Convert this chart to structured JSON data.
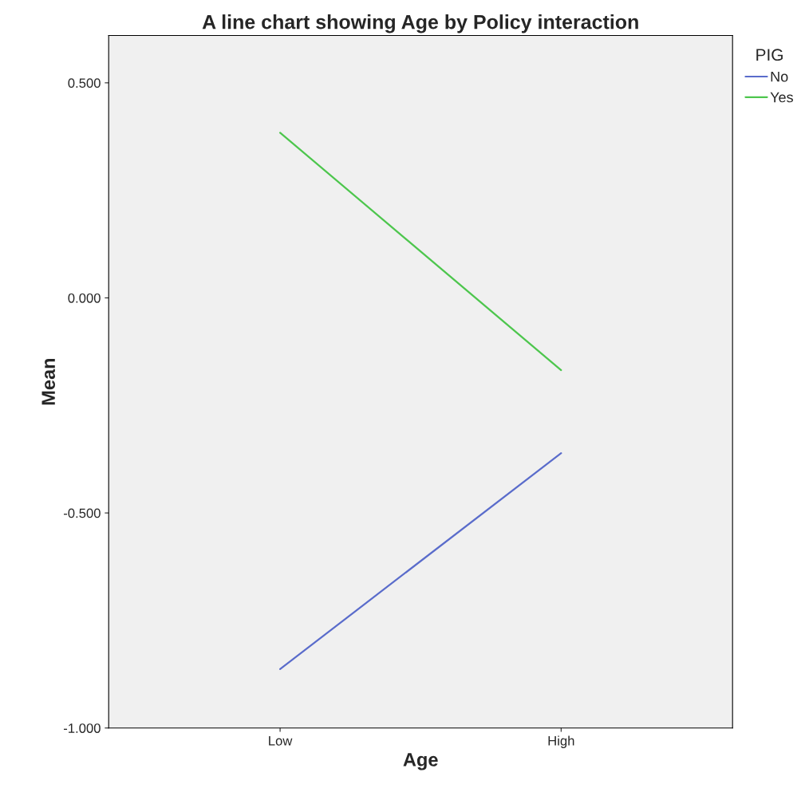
{
  "chart_data": {
    "type": "line",
    "title": "A line chart showing Age by Policy interaction",
    "xlabel": "Age",
    "ylabel": "Mean",
    "legend_title": "PIG",
    "categories": [
      "Low",
      "High"
    ],
    "series": [
      {
        "name": "No",
        "color": "#5a6ccb",
        "values": [
          -0.863,
          -0.361
        ]
      },
      {
        "name": "Yes",
        "color": "#4dc64d",
        "values": [
          0.384,
          -0.168
        ]
      }
    ],
    "ylim": [
      -1.0,
      0.61
    ],
    "yticks": [
      {
        "value": -1.0,
        "label": "-1.000"
      },
      {
        "value": -0.5,
        "label": "-0.500"
      },
      {
        "value": 0.0,
        "label": "0.000"
      },
      {
        "value": 0.5,
        "label": "0.500"
      }
    ],
    "grid": false,
    "legend": "top right",
    "marker": "none",
    "line_style": "solid"
  }
}
